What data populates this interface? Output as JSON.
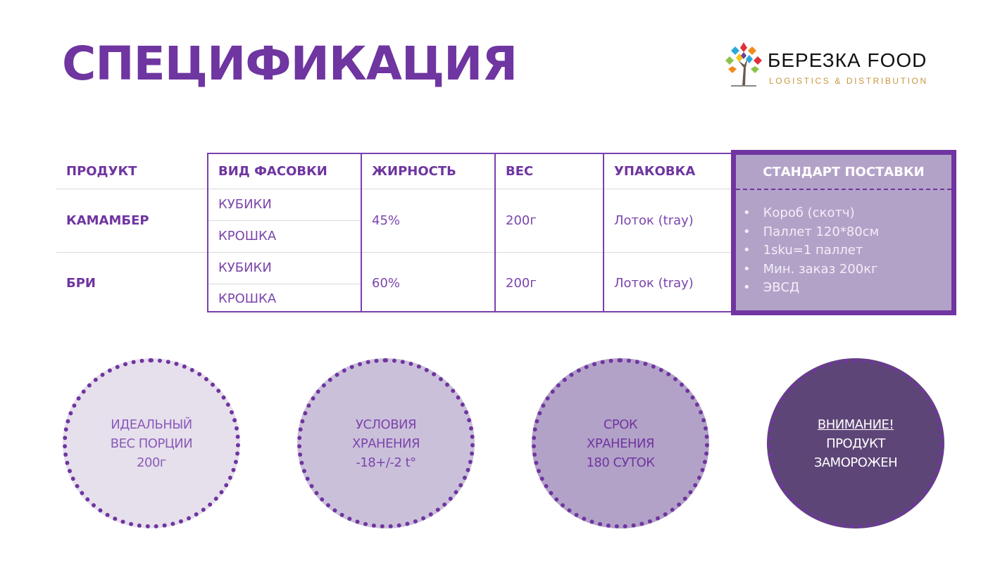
{
  "title": "СПЕЦИФИКАЦИЯ",
  "logo": {
    "name": "БЕРЕЗКА FOOD",
    "tagline": "LOGISTICS & DISTRIBUTION"
  },
  "table": {
    "headers": [
      "ПРОДУКТ",
      "ВИД ФАСОВКИ",
      "ЖИРНОСТЬ",
      "ВЕС",
      "УПАКОВКА"
    ],
    "rows": [
      {
        "product": "КАМАМБЕР",
        "packs": [
          "КУБИКИ",
          "КРОШКА"
        ],
        "fat": "45%",
        "weight": "200г",
        "packaging": "Лоток (tray)"
      },
      {
        "product": "БРИ",
        "packs": [
          "КУБИКИ",
          "КРОШКА"
        ],
        "fat": "60%",
        "weight": "200г",
        "packaging": "Лоток (tray)"
      }
    ]
  },
  "standard": {
    "title": "СТАНДАРТ ПОСТАВКИ",
    "items": [
      "Короб (скотч)",
      "Паллет 120*80см",
      "1sku=1 паллет",
      "Мин. заказ 200кг",
      "ЭВСД"
    ]
  },
  "circles": [
    {
      "lines": [
        "ИДЕАЛЬНЫЙ",
        "ВЕС ПОРЦИИ",
        "200г"
      ],
      "fill": "#e6dfec",
      "text_color": "#8a5cb8"
    },
    {
      "lines": [
        "УСЛОВИЯ",
        "ХРАНЕНИЯ",
        "-18+/-2 t°"
      ],
      "fill": "#cbc0da",
      "text_color": "#7b45ab"
    },
    {
      "lines": [
        "СРОК",
        "ХРАНЕНИЯ",
        "180 СУТОК"
      ],
      "fill": "#b3a2c8",
      "text_color": "#6f35a0"
    },
    {
      "lines": [
        "ВНИМАНИЕ!",
        "ПРОДУКТ",
        "ЗАМОРОЖЕН"
      ],
      "fill": "#5e4577",
      "text_color": "#ffffff"
    }
  ]
}
